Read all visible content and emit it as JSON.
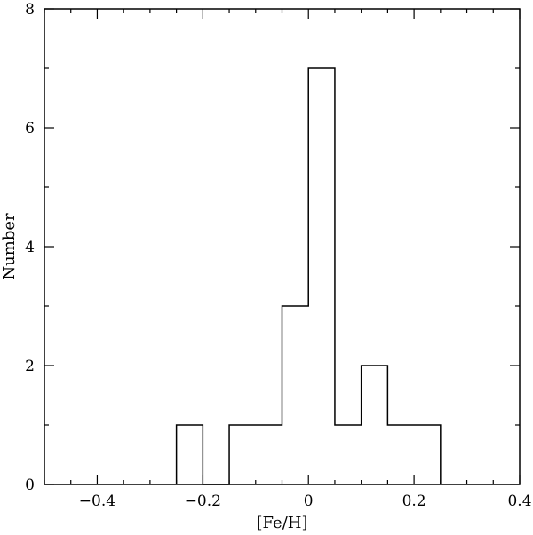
{
  "chart_data": {
    "type": "bar",
    "histogram": true,
    "xlabel": "[Fe/H]",
    "ylabel": "Number",
    "xlim": [
      -0.5,
      0.4
    ],
    "ylim": [
      0,
      8
    ],
    "grid": false,
    "bin_width": 0.05,
    "bin_edges": [
      -0.25,
      -0.2,
      -0.15,
      -0.1,
      -0.05,
      0.0,
      0.05,
      0.1,
      0.15,
      0.2,
      0.25
    ],
    "values": [
      1,
      0,
      1,
      1,
      3,
      7,
      1,
      2,
      1,
      1
    ],
    "x_ticks_major": [
      -0.4,
      -0.2,
      0,
      0.2,
      0.4
    ],
    "x_tick_labels": [
      "−0.4",
      "−0.2",
      "0",
      "0.2",
      "0.4"
    ],
    "y_ticks_major": [
      0,
      2,
      4,
      6,
      8
    ],
    "y_tick_labels": [
      "0",
      "2",
      "4",
      "6",
      "8"
    ],
    "x_minor_step": 0.05,
    "y_minor_step": 1,
    "line_color": "#000000"
  }
}
